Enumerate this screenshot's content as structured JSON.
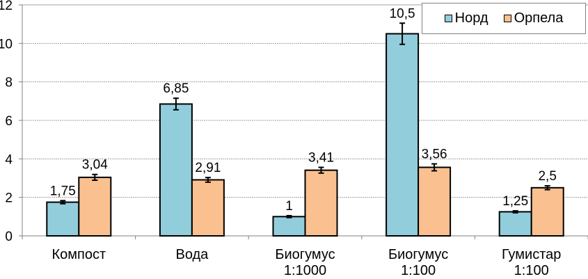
{
  "chart_data": {
    "type": "bar",
    "title": "",
    "xlabel": "",
    "ylabel": "",
    "ylim": [
      0,
      12
    ],
    "yticks": [
      0,
      2,
      4,
      6,
      8,
      10,
      12
    ],
    "grid": true,
    "legend_position": "top-right",
    "categories": [
      [
        "Компост"
      ],
      [
        "Вода"
      ],
      [
        "Биогумус",
        "1:1000"
      ],
      [
        "Биогумус",
        "1:100"
      ],
      [
        "Гумистар",
        "1:100"
      ]
    ],
    "series": [
      {
        "name": "Норд",
        "color": "#92CDDC",
        "values": [
          1.75,
          6.85,
          1.0,
          10.5,
          1.25
        ],
        "labels": [
          "1,75",
          "6,85",
          "1",
          "10,5",
          "1,25"
        ],
        "errors": [
          0.08,
          0.3,
          0.05,
          0.55,
          0.05
        ]
      },
      {
        "name": "Орпела",
        "color": "#FAC090",
        "values": [
          3.04,
          2.91,
          3.41,
          3.56,
          2.5
        ],
        "labels": [
          "3,04",
          "2,91",
          "3,41",
          "3,56",
          "2,5"
        ],
        "errors": [
          0.15,
          0.12,
          0.15,
          0.18,
          0.1
        ]
      }
    ]
  }
}
